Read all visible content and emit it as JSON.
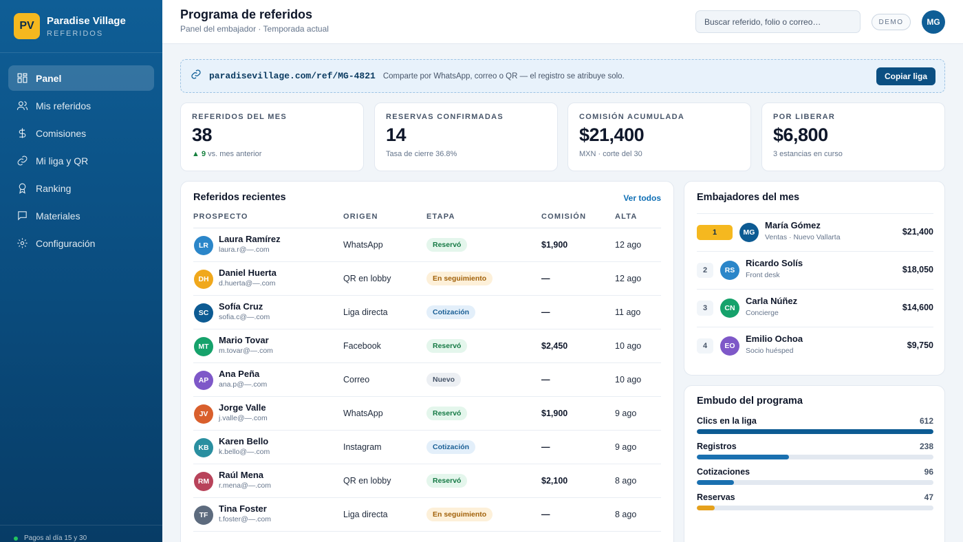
{
  "brand": {
    "logo": "PV",
    "name": "Paradise Village",
    "sub": "REFERIDOS"
  },
  "nav": [
    {
      "label": "Panel",
      "icon": "dashboard-icon",
      "active": true
    },
    {
      "label": "Mis referidos",
      "icon": "users-icon"
    },
    {
      "label": "Comisiones",
      "icon": "dollar-icon"
    },
    {
      "label": "Mi liga y QR",
      "icon": "link-icon"
    },
    {
      "label": "Ranking",
      "icon": "award-icon"
    },
    {
      "label": "Materiales",
      "icon": "message-icon"
    },
    {
      "label": "Configuración",
      "icon": "gear-icon"
    }
  ],
  "sidebar_footer": "Pagos al día 15 y 30",
  "header": {
    "title": "Programa de referidos",
    "subtitle": "Panel del embajador · Temporada actual",
    "search_placeholder": "Buscar referido, folio o correo…",
    "badge": "DEMO",
    "avatar": "MG"
  },
  "reflink": {
    "url": "paradisevillage.com/ref/MG-4821",
    "hint": "Comparte por WhatsApp, correo o QR — el registro se atribuye solo.",
    "button": "Copiar liga"
  },
  "stats": [
    {
      "label": "REFERIDOS DEL MES",
      "value": "38",
      "up": "▲ 9",
      "note": " vs. mes anterior"
    },
    {
      "label": "RESERVAS CONFIRMADAS",
      "value": "14",
      "up": "",
      "note": "Tasa de cierre 36.8%"
    },
    {
      "label": "COMISIÓN ACUMULADA",
      "value": "$21,400",
      "up": "",
      "note": "MXN · corte del 30"
    },
    {
      "label": "POR LIBERAR",
      "value": "$6,800",
      "up": "",
      "note": "3 estancias en curso"
    }
  ],
  "referrals": {
    "title": "Referidos recientes",
    "see_all": "Ver todos",
    "columns": [
      "PROSPECTO",
      "ORIGEN",
      "ETAPA",
      "COMISIÓN",
      "ALTA"
    ],
    "rows": [
      {
        "initials": "LR",
        "color": "#2b86c9",
        "name": "Laura Ramírez",
        "email": "laura.r@—.com",
        "origin": "WhatsApp",
        "stage": "Reservó",
        "stage_type": "green",
        "commission": "$1,900",
        "date": "12 ago"
      },
      {
        "initials": "DH",
        "color": "#f0a81c",
        "name": "Daniel Huerta",
        "email": "d.huerta@—.com",
        "origin": "QR en lobby",
        "stage": "En seguimiento",
        "stage_type": "amber",
        "commission": "—",
        "date": "12 ago"
      },
      {
        "initials": "SC",
        "color": "#0d5b93",
        "name": "Sofía Cruz",
        "email": "sofia.c@—.com",
        "origin": "Liga directa",
        "stage": "Cotización",
        "stage_type": "blue",
        "commission": "—",
        "date": "11 ago"
      },
      {
        "initials": "MT",
        "color": "#16a26b",
        "name": "Mario Tovar",
        "email": "m.tovar@—.com",
        "origin": "Facebook",
        "stage": "Reservó",
        "stage_type": "green",
        "commission": "$2,450",
        "date": "10 ago"
      },
      {
        "initials": "AP",
        "color": "#7e58c8",
        "name": "Ana Peña",
        "email": "ana.p@—.com",
        "origin": "Correo",
        "stage": "Nuevo",
        "stage_type": "gray",
        "commission": "—",
        "date": "10 ago"
      },
      {
        "initials": "JV",
        "color": "#d95f2c",
        "name": "Jorge Valle",
        "email": "j.valle@—.com",
        "origin": "WhatsApp",
        "stage": "Reservó",
        "stage_type": "green",
        "commission": "$1,900",
        "date": "9 ago"
      },
      {
        "initials": "KB",
        "color": "#2a8fa0",
        "name": "Karen Bello",
        "email": "k.bello@—.com",
        "origin": "Instagram",
        "stage": "Cotización",
        "stage_type": "blue",
        "commission": "—",
        "date": "9 ago"
      },
      {
        "initials": "RM",
        "color": "#b8435a",
        "name": "Raúl Mena",
        "email": "r.mena@—.com",
        "origin": "QR en lobby",
        "stage": "Reservó",
        "stage_type": "green",
        "commission": "$2,100",
        "date": "8 ago"
      },
      {
        "initials": "TF",
        "color": "#5d6b7e",
        "name": "Tina Foster",
        "email": "t.foster@—.com",
        "origin": "Liga directa",
        "stage": "En seguimiento",
        "stage_type": "amber",
        "commission": "—",
        "date": "8 ago"
      }
    ]
  },
  "ambassadors": {
    "title": "Embajadores del mes",
    "items": [
      {
        "rank": "1",
        "initials": "MG",
        "color": "#0d5b93",
        "name": "María Gómez",
        "role": "Ventas · Nuevo Vallarta",
        "value": "$21,400"
      },
      {
        "rank": "2",
        "initials": "RS",
        "color": "#2b86c9",
        "name": "Ricardo Solís",
        "role": "Front desk",
        "value": "$18,050"
      },
      {
        "rank": "3",
        "initials": "CN",
        "color": "#16a26b",
        "name": "Carla Núñez",
        "role": "Concierge",
        "value": "$14,600"
      },
      {
        "rank": "4",
        "initials": "EO",
        "color": "#7e58c8",
        "name": "Emilio Ochoa",
        "role": "Socio huésped",
        "value": "$9,750"
      }
    ]
  },
  "funnel": {
    "title": "Embudo del programa",
    "max": 612,
    "steps": [
      {
        "label": "Clics en la liga",
        "value": 612,
        "color": "#0d5b93"
      },
      {
        "label": "Registros",
        "value": 238,
        "color": "#1a70b0"
      },
      {
        "label": "Cotizaciones",
        "value": 96,
        "color": "#1a70b0"
      },
      {
        "label": "Reservas",
        "value": 47,
        "color": "#e5a11c"
      }
    ]
  },
  "colors": {
    "accent": "#0b4f82",
    "gold": "#f5b81f",
    "success": "#15803d"
  }
}
